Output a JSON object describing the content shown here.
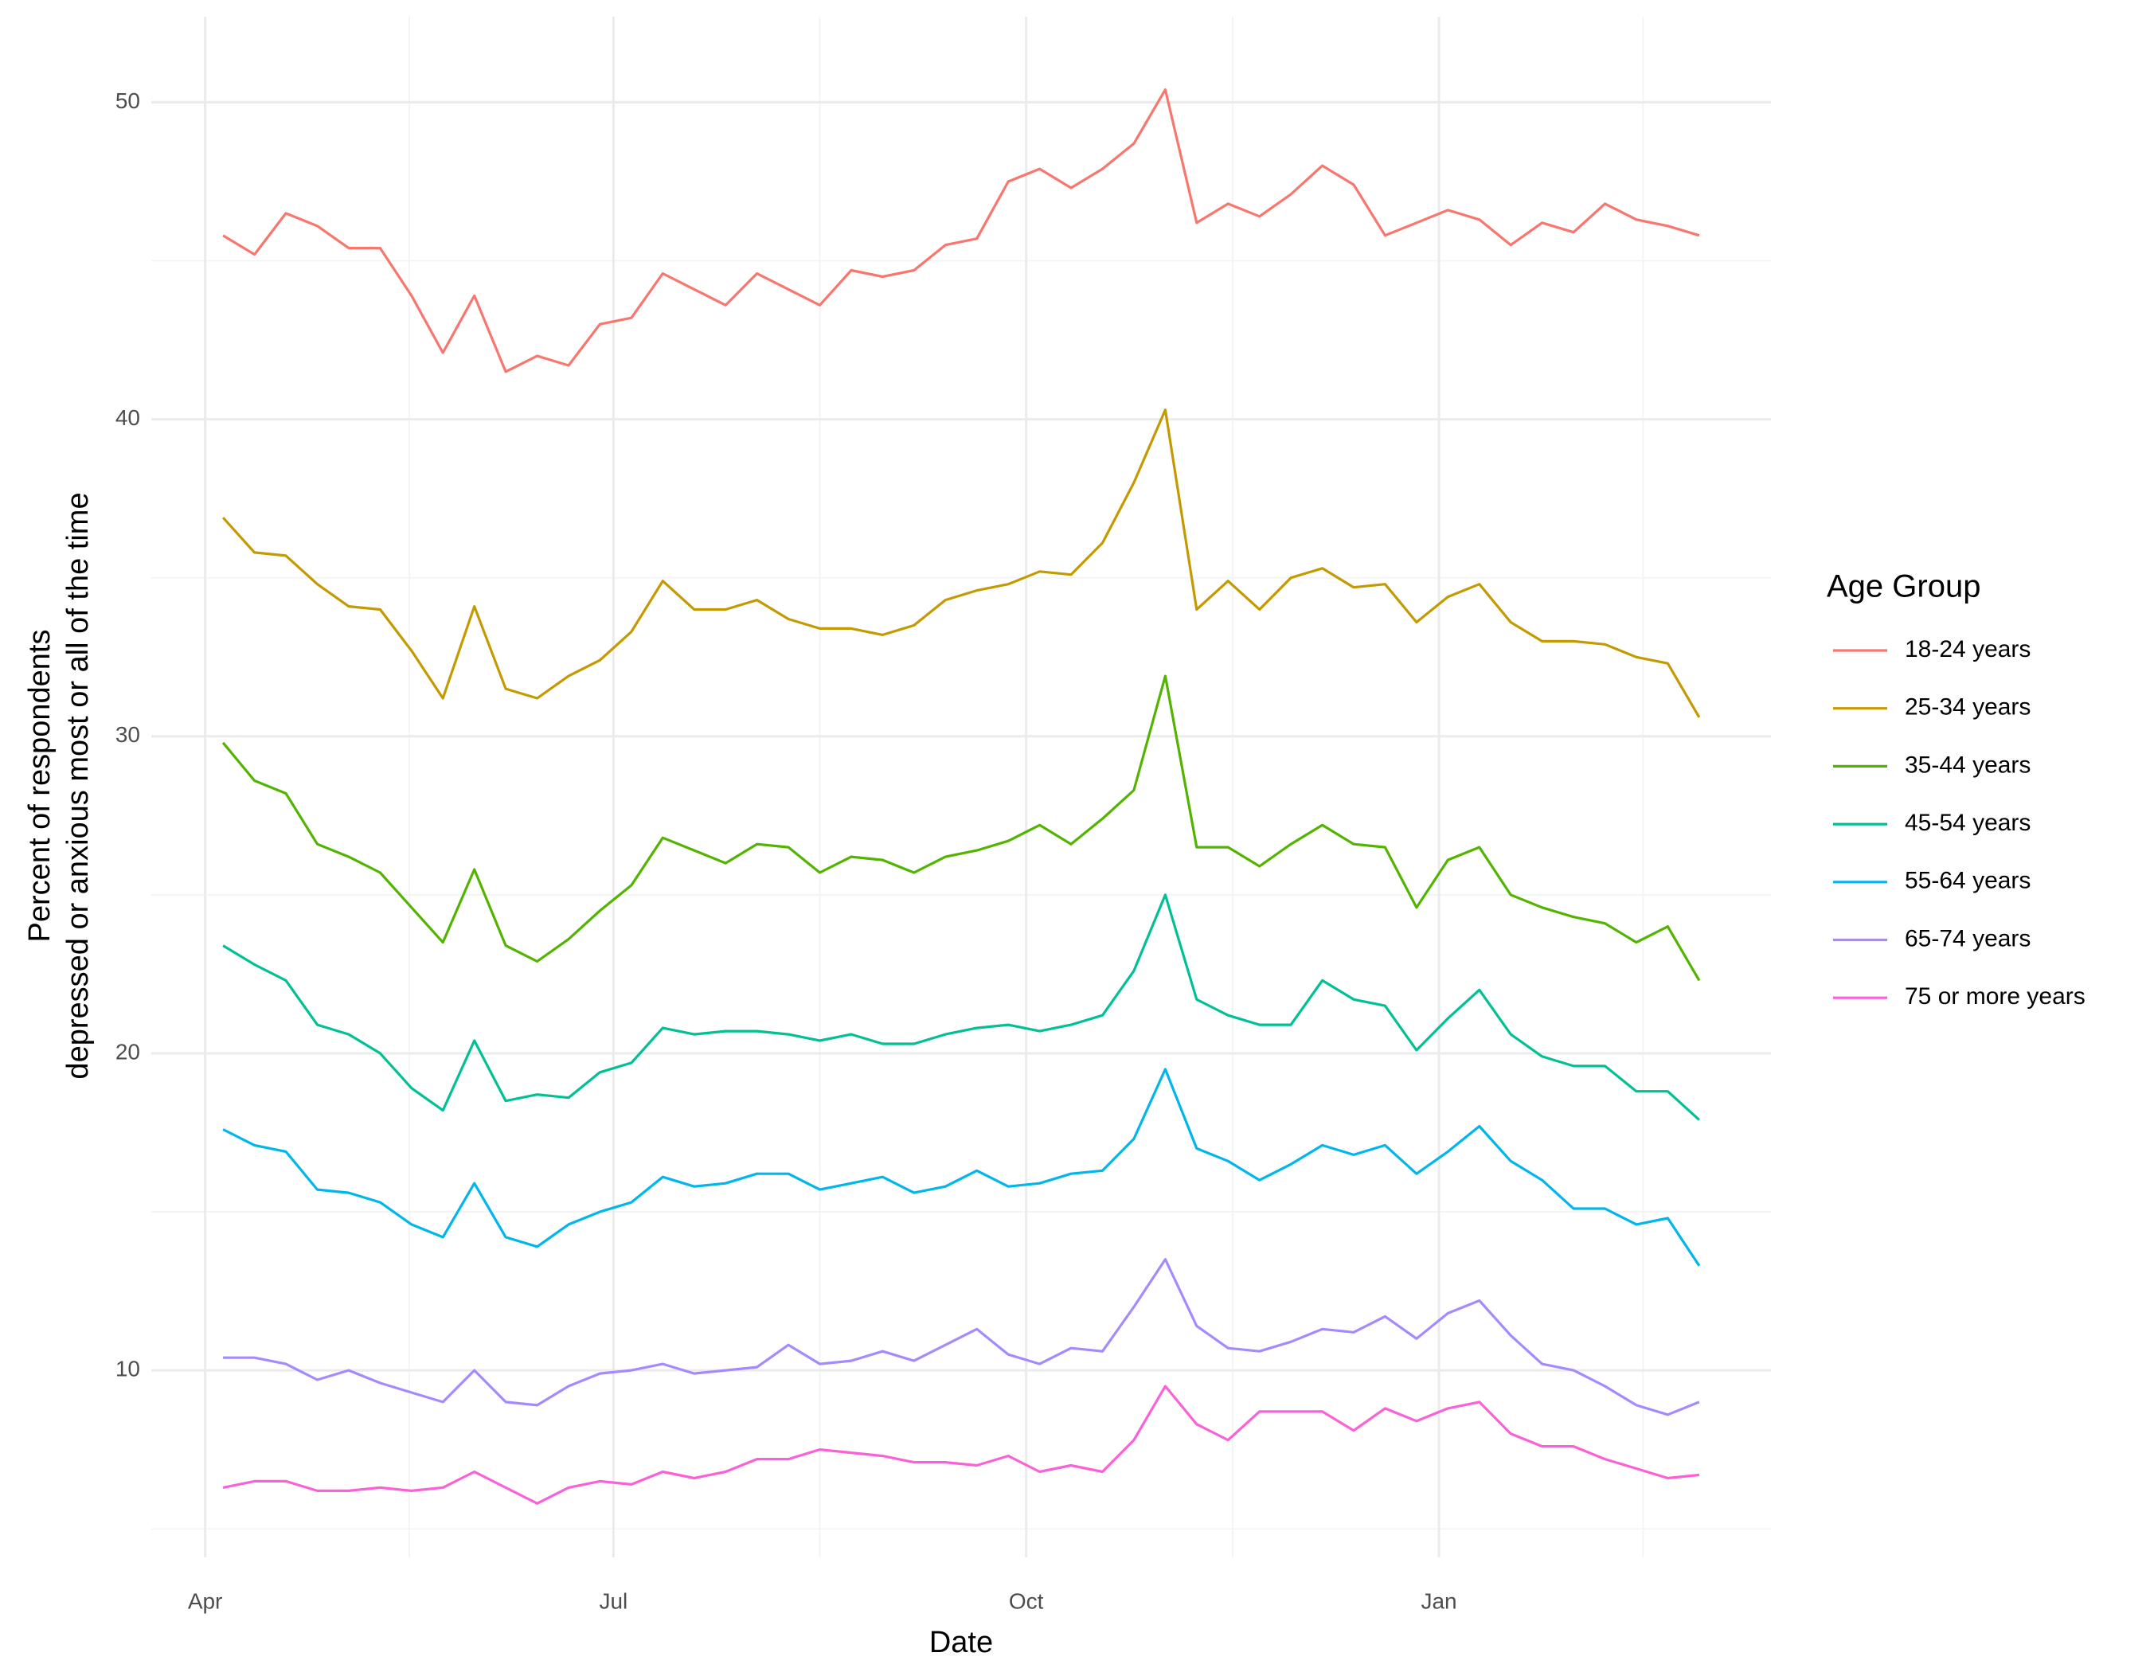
{
  "chart_data": {
    "type": "line",
    "xlabel": "Date",
    "ylabel": [
      "Percent of respondents",
      "depressed or anxious most or all of the time"
    ],
    "legend_title": "Age Group",
    "legend": "right",
    "grid": true,
    "x": [
      4,
      11,
      18,
      25,
      32,
      39,
      46,
      53,
      60,
      67,
      74,
      81,
      88,
      95,
      102,
      109,
      116,
      123,
      130,
      137,
      144,
      151,
      158,
      165,
      172,
      179,
      186,
      193,
      200,
      207,
      214,
      221,
      228,
      235,
      242,
      249,
      256,
      263,
      270,
      277,
      284,
      291,
      298,
      305,
      312,
      319,
      326,
      333
    ],
    "xlim": [
      -12,
      349
    ],
    "xticks": [
      {
        "value": 0,
        "label": "Apr"
      },
      {
        "value": 91,
        "label": "Jul"
      },
      {
        "value": 183,
        "label": "Oct"
      },
      {
        "value": 275,
        "label": "Jan"
      }
    ],
    "ylim": [
      4.1,
      52.7
    ],
    "yticks": [
      10,
      20,
      30,
      40,
      50
    ],
    "series": [
      {
        "name": "18-24 years",
        "color": "#F8766D",
        "values": [
          45.8,
          45.2,
          46.5,
          46.1,
          45.4,
          45.4,
          43.9,
          42.1,
          43.9,
          41.5,
          42.0,
          41.7,
          43.0,
          43.2,
          44.6,
          44.1,
          43.6,
          44.6,
          44.1,
          43.6,
          44.7,
          44.5,
          44.7,
          45.5,
          45.7,
          47.5,
          47.9,
          47.3,
          47.9,
          48.7,
          50.4,
          46.2,
          46.8,
          46.4,
          47.1,
          48.0,
          47.4,
          45.8,
          46.2,
          46.6,
          46.3,
          45.5,
          46.2,
          45.9,
          46.8,
          46.3,
          46.1,
          45.8
        ]
      },
      {
        "name": "25-34 years",
        "color": "#C49A00",
        "values": [
          36.9,
          35.8,
          35.7,
          34.8,
          34.1,
          34.0,
          32.7,
          31.2,
          34.1,
          31.5,
          31.2,
          31.9,
          32.4,
          33.3,
          34.9,
          34.0,
          34.0,
          34.3,
          33.7,
          33.4,
          33.4,
          33.2,
          33.5,
          34.3,
          34.6,
          34.8,
          35.2,
          35.1,
          36.1,
          38.0,
          40.3,
          34.0,
          34.9,
          34.0,
          35.0,
          35.3,
          34.7,
          34.8,
          33.6,
          34.4,
          34.8,
          33.6,
          33.0,
          33.0,
          32.9,
          32.5,
          32.3,
          30.6
        ]
      },
      {
        "name": "35-44 years",
        "color": "#53B400",
        "values": [
          29.8,
          28.6,
          28.2,
          26.6,
          26.2,
          25.7,
          24.6,
          23.5,
          25.8,
          23.4,
          22.9,
          23.6,
          24.5,
          25.3,
          26.8,
          26.4,
          26.0,
          26.6,
          26.5,
          25.7,
          26.2,
          26.1,
          25.7,
          26.2,
          26.4,
          26.7,
          27.2,
          26.6,
          27.4,
          28.3,
          31.9,
          26.5,
          26.5,
          25.9,
          26.6,
          27.2,
          26.6,
          26.5,
          24.6,
          26.1,
          26.5,
          25.0,
          24.6,
          24.3,
          24.1,
          23.5,
          24.0,
          22.3
        ]
      },
      {
        "name": "45-54 years",
        "color": "#00C094",
        "values": [
          23.4,
          22.8,
          22.3,
          20.9,
          20.6,
          20.0,
          18.9,
          18.2,
          20.4,
          18.5,
          18.7,
          18.6,
          19.4,
          19.7,
          20.8,
          20.6,
          20.7,
          20.7,
          20.6,
          20.4,
          20.6,
          20.3,
          20.3,
          20.6,
          20.8,
          20.9,
          20.7,
          20.9,
          21.2,
          22.6,
          25.0,
          21.7,
          21.2,
          20.9,
          20.9,
          22.3,
          21.7,
          21.5,
          20.1,
          21.1,
          22.0,
          20.6,
          19.9,
          19.6,
          19.6,
          18.8,
          18.8,
          17.9
        ]
      },
      {
        "name": "55-64 years",
        "color": "#00B6EB",
        "values": [
          17.6,
          17.1,
          16.9,
          15.7,
          15.6,
          15.3,
          14.6,
          14.2,
          15.9,
          14.2,
          13.9,
          14.6,
          15.0,
          15.3,
          16.1,
          15.8,
          15.9,
          16.2,
          16.2,
          15.7,
          15.9,
          16.1,
          15.6,
          15.8,
          16.3,
          15.8,
          15.9,
          16.2,
          16.3,
          17.3,
          19.5,
          17.0,
          16.6,
          16.0,
          16.5,
          17.1,
          16.8,
          17.1,
          16.2,
          16.9,
          17.7,
          16.6,
          16.0,
          15.1,
          15.1,
          14.6,
          14.8,
          13.3
        ]
      },
      {
        "name": "65-74 years",
        "color": "#A58AFF",
        "values": [
          10.4,
          10.4,
          10.2,
          9.7,
          10.0,
          9.6,
          9.3,
          9.0,
          10.0,
          9.0,
          8.9,
          9.5,
          9.9,
          10.0,
          10.2,
          9.9,
          10.0,
          10.1,
          10.8,
          10.2,
          10.3,
          10.6,
          10.3,
          10.8,
          11.3,
          10.5,
          10.2,
          10.7,
          10.6,
          12.0,
          13.5,
          11.4,
          10.7,
          10.6,
          10.9,
          11.3,
          11.2,
          11.7,
          11.0,
          11.8,
          12.2,
          11.1,
          10.2,
          10.0,
          9.5,
          8.9,
          8.6,
          9.0
        ]
      },
      {
        "name": "75 or more years",
        "color": "#FB61D7",
        "values": [
          6.3,
          6.5,
          6.5,
          6.2,
          6.2,
          6.3,
          6.2,
          6.3,
          6.8,
          6.3,
          5.8,
          6.3,
          6.5,
          6.4,
          6.8,
          6.6,
          6.8,
          7.2,
          7.2,
          7.5,
          7.4,
          7.3,
          7.1,
          7.1,
          7.0,
          7.3,
          6.8,
          7.0,
          6.8,
          7.8,
          9.5,
          8.3,
          7.8,
          8.7,
          8.7,
          8.7,
          8.1,
          8.8,
          8.4,
          8.8,
          9.0,
          8.0,
          7.6,
          7.6,
          7.2,
          6.9,
          6.6,
          6.7
        ]
      }
    ]
  }
}
